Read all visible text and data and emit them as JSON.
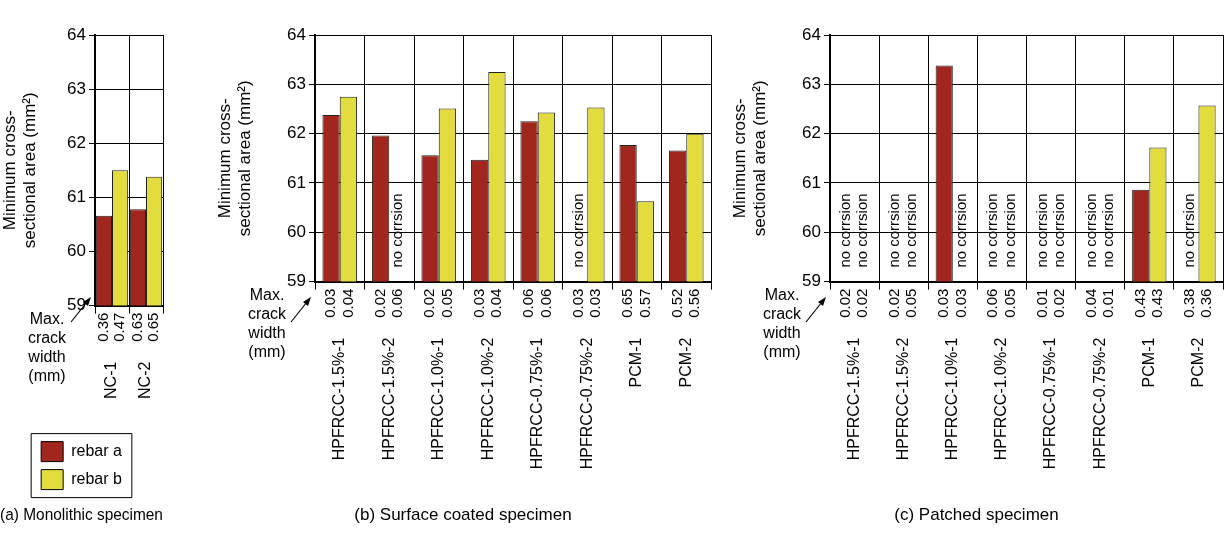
{
  "chart_data": [
    {
      "type": "bar",
      "title": "(a) Monolithic specimen",
      "ylabel": "Minimum cross-sectional area (mm²)",
      "categories": [
        "NC-1",
        "NC-2"
      ],
      "series": [
        {
          "name": "rebar a",
          "color": "#a0261e",
          "values": [
            60.66,
            60.78
          ]
        },
        {
          "name": "rebar b",
          "color": "#e3dc3e",
          "values": [
            61.5,
            61.38
          ]
        }
      ],
      "ylim": [
        59,
        64
      ],
      "yticks": [
        59,
        60,
        61,
        62,
        63,
        64
      ],
      "grid": true,
      "legend": "bottom",
      "annotations": [
        "Max. crack width (mm)",
        "0.36",
        "0.47",
        "0.63",
        "0.65"
      ]
    },
    {
      "type": "bar",
      "title": "(b) Surface coated specimen",
      "ylabel": "Minimum cross-sectional area (mm²)",
      "categories": [
        "HPFRCC-1.5%-1",
        "HPFRCC-1.5%-2",
        "HPFRCC-1.0%-1",
        "HPFRCC-1.0%-2",
        "HPFRCC-0.75%-1",
        "HPFRCC-0.75%-2",
        "PCM-1",
        "PCM-2"
      ],
      "series": [
        {
          "color": "#a0261e",
          "values": [
            62.38,
            61.96,
            61.56,
            61.47,
            62.25,
            null,
            61.77,
            61.66
          ],
          "value_labels": [
            null,
            null,
            null,
            null,
            null,
            "no corrsion",
            null,
            null
          ]
        },
        {
          "color": "#e3dc3e",
          "values": [
            62.75,
            null,
            62.51,
            63.25,
            62.43,
            62.53,
            60.63,
            62.0
          ],
          "value_labels": [
            null,
            "no corrsion",
            null,
            null,
            null,
            null,
            null,
            null
          ]
        }
      ],
      "ylim": [
        59,
        64
      ],
      "yticks": [
        59,
        60,
        61,
        62,
        63,
        64
      ],
      "grid": true,
      "annotations": [
        "Max. crack width (mm)",
        "0.03",
        "0.04",
        "0.02",
        "0.06",
        "0.02",
        "0.05",
        "0.03",
        "0.04",
        "0.06",
        "0.06",
        "0.03",
        "0.03",
        "0.65",
        "0.57",
        "0.52",
        "0.56"
      ]
    },
    {
      "type": "bar",
      "title": "(c) Patched specimen",
      "ylabel": "Minimum cross-sectional area (mm²)",
      "categories": [
        "HPFRCC-1.5%-1",
        "HPFRCC-1.5%-2",
        "HPFRCC-1.0%-1",
        "HPFRCC-1.0%-2",
        "HPFRCC-0.75%-1",
        "HPFRCC-0.75%-2",
        "PCM-1",
        "PCM-2"
      ],
      "series": [
        {
          "color": "#a0261e",
          "values": [
            null,
            null,
            63.38,
            null,
            null,
            null,
            60.86,
            null
          ],
          "value_labels": [
            "no corrsion",
            "no corrsion",
            null,
            "no corrsion",
            "no corrsion",
            "no corrsion",
            null,
            "no corrsion"
          ]
        },
        {
          "color": "#e3dc3e",
          "values": [
            null,
            null,
            null,
            null,
            null,
            null,
            61.72,
            62.57
          ],
          "value_labels": [
            "no corrsion",
            "no corrsion",
            "no corrsion",
            "no corrsion",
            "no corrsion",
            "no corrsion",
            null,
            null
          ]
        }
      ],
      "ylim": [
        59,
        64
      ],
      "yticks": [
        59,
        60,
        61,
        62,
        63,
        64
      ],
      "grid": true,
      "annotations": [
        "Max. crack width (mm)",
        "0.02",
        "0.02",
        "0.02",
        "0.05",
        "0.03",
        "0.03",
        "0.06",
        "0.05",
        "0.01",
        "0.02",
        "0.04",
        "0.01",
        "0.43",
        "0.43",
        "0.38",
        "0.36"
      ]
    }
  ]
}
